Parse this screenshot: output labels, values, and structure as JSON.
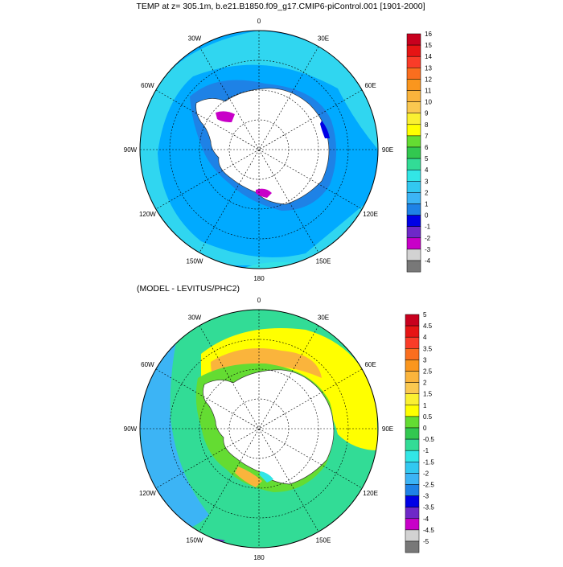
{
  "top_panel": {
    "title": "TEMP at z= 305.1m, b.e21.B1850.f09_g17.CMIP6-piControl.001 [1901-2000]",
    "lon_labels": [
      "0",
      "30E",
      "60E",
      "90E",
      "120E",
      "150E",
      "180",
      "150W",
      "120W",
      "90W",
      "60W",
      "30W"
    ],
    "colorbar": {
      "labels": [
        "16",
        "15",
        "14",
        "13",
        "12",
        "11",
        "10",
        "9",
        "8",
        "7",
        "6",
        "5",
        "4",
        "3",
        "2",
        "1",
        "0",
        "-1",
        "-2",
        "-3",
        "-4"
      ],
      "colors": [
        "#c8001e",
        "#e61414",
        "#fa3c28",
        "#fa6e1e",
        "#fa961e",
        "#fab43c",
        "#fac850",
        "#faf032",
        "#ffff00",
        "#64dc32",
        "#32c850",
        "#32dc96",
        "#32e6e6",
        "#32c8f0",
        "#3cb4f5",
        "#1e82e6",
        "#0000e6",
        "#6e28c8",
        "#c800c8",
        "#d2d2d2",
        "#787878"
      ]
    }
  },
  "bottom_panel": {
    "title": "(MODEL - LEVITUS/PHC2)",
    "lon_labels": [
      "0",
      "30E",
      "60E",
      "90E",
      "120E",
      "150E",
      "180",
      "150W",
      "120W",
      "90W",
      "60W",
      "30W"
    ],
    "colorbar": {
      "labels": [
        "5",
        "4.5",
        "4",
        "3.5",
        "3",
        "2.5",
        "2",
        "1.5",
        "1",
        "0.5",
        "0",
        "-0.5",
        "-1",
        "-1.5",
        "-2",
        "-2.5",
        "-3",
        "-3.5",
        "-4",
        "-4.5",
        "-5"
      ],
      "colors": [
        "#c8001e",
        "#e61414",
        "#fa3c28",
        "#fa6e1e",
        "#fa961e",
        "#fab43c",
        "#fac850",
        "#faf032",
        "#ffff00",
        "#64dc32",
        "#32c850",
        "#32dc96",
        "#32e6e6",
        "#32c8f0",
        "#3cb4f5",
        "#1e82e6",
        "#0000e6",
        "#6e28c8",
        "#c800c8",
        "#d2d2d2",
        "#787878"
      ]
    }
  }
}
